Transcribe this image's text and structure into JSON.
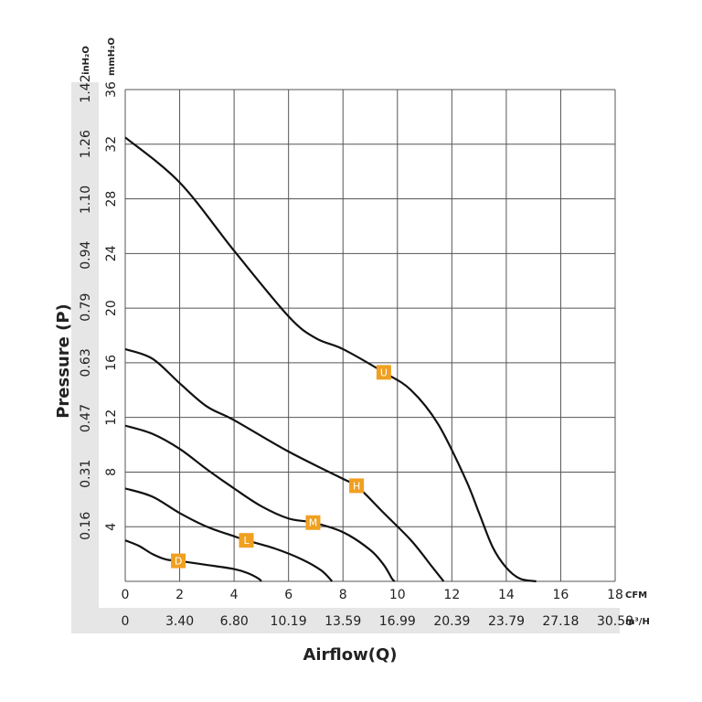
{
  "chart_data": {
    "type": "line",
    "title_x": "Airflow(Q)",
    "title_y": "Pressure (P)",
    "x_unit": "CFM",
    "x2_unit": "m³/H",
    "y_unit": "mmH₂O",
    "y2_unit": "inH₂O",
    "xlim": [
      0,
      18
    ],
    "xticks": [
      0,
      2,
      4,
      6,
      8,
      10,
      12,
      14,
      16,
      18
    ],
    "x2lim": [
      0,
      30.58
    ],
    "x2ticks": [
      0,
      {
        "value": 3.4,
        "label": "3.40"
      },
      {
        "value": 6.8,
        "label": "6.80"
      },
      10.19,
      13.59,
      16.99,
      20.39,
      23.79,
      27.18,
      30.58
    ],
    "ylim": [
      0,
      36
    ],
    "yticks": [
      4,
      8,
      12,
      16,
      20,
      24,
      28,
      32,
      36
    ],
    "y2lim": [
      0,
      1.4173
    ],
    "y2ticks": [
      0.16,
      0.31,
      0.47,
      0.63,
      0.79,
      0.94,
      {
        "value": 1.1,
        "label": "1.10"
      },
      1.26,
      1.42
    ],
    "grid": true,
    "label_color": "#f0a020",
    "series": [
      {
        "name": "U",
        "color": "#111111",
        "x": [
          0,
          2,
          4,
          6,
          7,
          8,
          9.5,
          10.5,
          11.5,
          12.5,
          13,
          13.5,
          14,
          14.5,
          15.1
        ],
        "values": [
          32.5,
          29.2,
          24.2,
          19.4,
          17.8,
          17,
          15.3,
          14,
          11.5,
          7.5,
          5,
          2.5,
          1,
          0.2,
          0
        ]
      },
      {
        "name": "H",
        "color": "#111111",
        "x": [
          0,
          1,
          2,
          3,
          4,
          6,
          8,
          8.5,
          9.5,
          10.5,
          11.3,
          11.7
        ],
        "values": [
          17,
          16.3,
          14.5,
          12.8,
          11.8,
          9.5,
          7.5,
          7,
          5,
          3,
          1,
          0
        ]
      },
      {
        "name": "M",
        "color": "#111111",
        "x": [
          0,
          1,
          2,
          3,
          4,
          5,
          6,
          6.9,
          8,
          9,
          9.5,
          9.8,
          9.9
        ],
        "values": [
          11.4,
          10.8,
          9.7,
          8.2,
          6.8,
          5.5,
          4.6,
          4.3,
          3.6,
          2.3,
          1.2,
          0.2,
          0
        ]
      },
      {
        "name": "L",
        "color": "#111111",
        "x": [
          0,
          1,
          2,
          3,
          4,
          4.45,
          5.5,
          6.5,
          7.2,
          7.6
        ],
        "values": [
          6.8,
          6.2,
          5,
          4,
          3.3,
          3,
          2.4,
          1.6,
          0.8,
          0
        ]
      },
      {
        "name": "D",
        "color": "#111111",
        "x": [
          0,
          0.5,
          1,
          1.5,
          1.95,
          3,
          4,
          4.5,
          4.9,
          5
        ],
        "values": [
          3,
          2.6,
          2,
          1.6,
          1.5,
          1.2,
          0.9,
          0.6,
          0.2,
          0
        ]
      }
    ]
  }
}
